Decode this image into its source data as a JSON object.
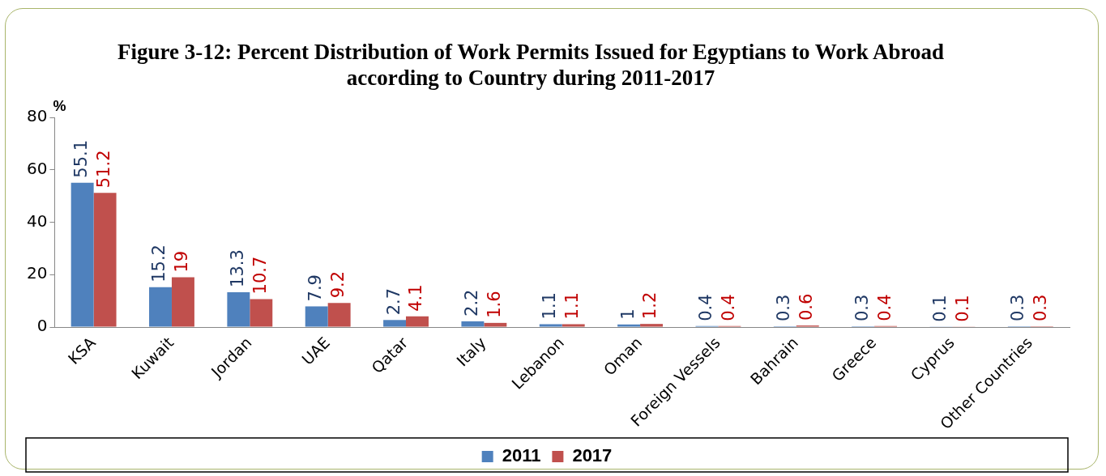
{
  "chart_data": {
    "type": "bar",
    "title": "Figure 3-12: Percent Distribution of Work Permits Issued for Egyptians to Work Abroad according to Country during 2011-2017",
    "ylabel": "%",
    "categories": [
      "KSA",
      "Kuwait",
      "Jordan",
      "UAE",
      "Qatar",
      "Italy",
      "Lebanon",
      "Oman",
      "Foreign Vessels",
      "Bahrain",
      "Greece",
      "Cyprus",
      "Other Countries"
    ],
    "series": [
      {
        "name": "2011",
        "color": "#4f81bd",
        "values": [
          55.1,
          15.2,
          13.3,
          7.9,
          2.7,
          2.2,
          1.1,
          1,
          0.4,
          0.3,
          0.3,
          0.1,
          0.3
        ]
      },
      {
        "name": "2017",
        "color": "#c0504d",
        "values": [
          51.2,
          19,
          10.7,
          9.2,
          4.1,
          1.6,
          1.1,
          1.2,
          0.4,
          0.6,
          0.4,
          0.1,
          0.3
        ]
      }
    ],
    "ylim": [
      0,
      80
    ],
    "yticks": [
      0,
      20,
      40,
      60,
      80
    ],
    "grid": false,
    "legend": "bottom",
    "data_labels": true
  }
}
